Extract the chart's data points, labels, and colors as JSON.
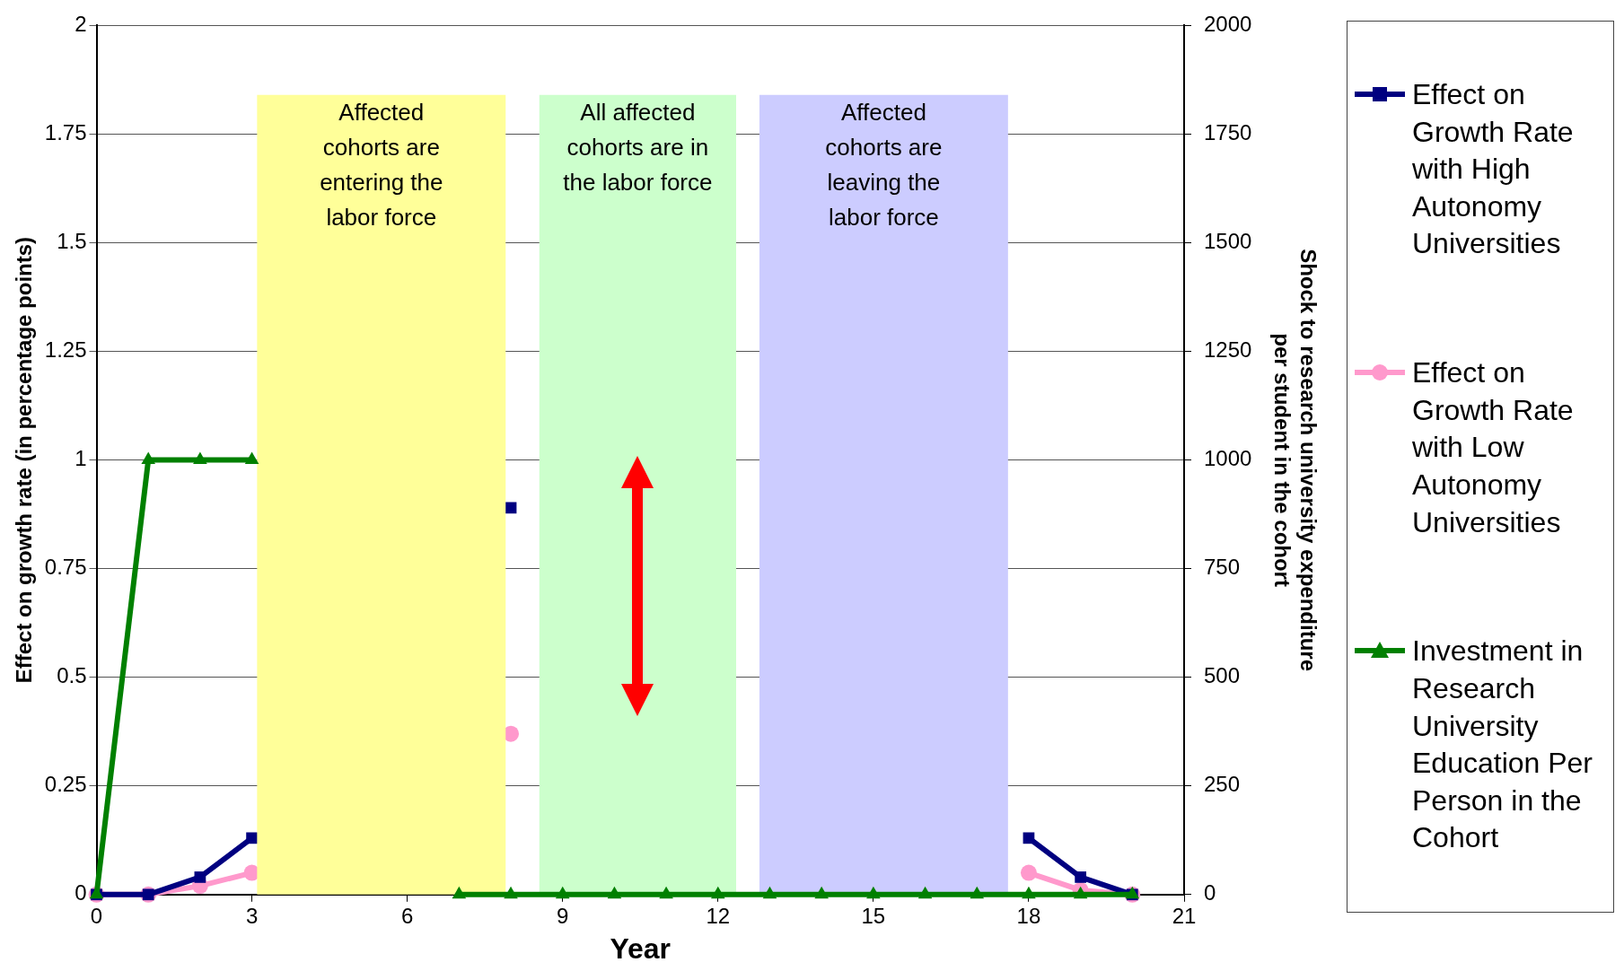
{
  "chart_data": {
    "type": "line",
    "x": [
      0,
      1,
      2,
      3,
      4,
      5,
      6,
      7,
      8,
      9,
      10,
      11,
      12,
      13,
      14,
      15,
      16,
      17,
      18,
      19,
      20
    ],
    "xlabel": "Year",
    "ylabel": "Effect on growth rate (in percentage points)",
    "y2label": "Shock to research university expenditure\nper student in the cohort",
    "xlim": [
      0,
      21
    ],
    "xticks": [
      0,
      3,
      6,
      9,
      12,
      15,
      18,
      21
    ],
    "ylim": [
      0,
      2
    ],
    "yticks": [
      0,
      0.25,
      0.5,
      0.75,
      1,
      1.25,
      1.5,
      1.75,
      2
    ],
    "y2lim": [
      0,
      2000
    ],
    "y2ticks": [
      0,
      250,
      500,
      750,
      1000,
      1250,
      1500,
      1750,
      2000
    ],
    "grid": "y",
    "legend": "right",
    "line_style": "solid",
    "series": [
      {
        "name": "Effect on Growth Rate with High Autonomy Universities",
        "color": "#000080",
        "marker": "square",
        "values": [
          0,
          0,
          0.04,
          0.13,
          null,
          null,
          null,
          null,
          0.89,
          null,
          null,
          null,
          null,
          null,
          null,
          null,
          null,
          null,
          0.13,
          0.04,
          0
        ]
      },
      {
        "name": "Effect on Growth Rate with Low Autonomy Universities",
        "color": "#ff99cc",
        "marker": "circle",
        "values": [
          0,
          0,
          0.02,
          0.05,
          null,
          null,
          null,
          null,
          0.37,
          null,
          null,
          null,
          null,
          null,
          null,
          null,
          null,
          null,
          0.05,
          0.01,
          0
        ]
      },
      {
        "name": "Investment in Research University Education Per Person in the Cohort",
        "color": "#008000",
        "marker": "triangle",
        "axis": "y2",
        "values": [
          0,
          1000,
          1000,
          1000,
          null,
          null,
          null,
          0,
          0,
          0,
          0,
          0,
          0,
          0,
          0,
          0,
          0,
          0,
          0,
          0,
          0
        ]
      }
    ],
    "bands": [
      {
        "axis": "x",
        "from": 3.1,
        "to": 7.9,
        "label": "Affected cohorts are entering the labor force",
        "color": "#ffff99"
      },
      {
        "axis": "x",
        "from": 8.55,
        "to": 12.35,
        "label": "All affected cohorts are in the labor force",
        "color": "#ccffcc"
      },
      {
        "axis": "x",
        "from": 12.8,
        "to": 17.6,
        "label": "Affected cohorts are leaving the labor force",
        "color": "#ccccff"
      }
    ]
  }
}
